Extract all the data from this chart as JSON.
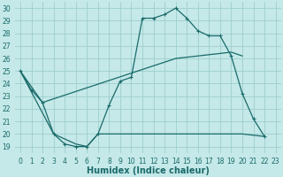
{
  "title": "",
  "xlabel": "Humidex (Indice chaleur)",
  "bg_color": "#c5e8e8",
  "grid_color": "#9ecece",
  "line_color": "#1a6b6b",
  "xlim": [
    -0.5,
    23.5
  ],
  "ylim": [
    18.5,
    30.5
  ],
  "xticks": [
    0,
    1,
    2,
    3,
    4,
    5,
    6,
    7,
    8,
    9,
    10,
    11,
    12,
    13,
    14,
    15,
    16,
    17,
    18,
    19,
    20,
    21,
    22,
    23
  ],
  "yticks": [
    19,
    20,
    21,
    22,
    23,
    24,
    25,
    26,
    27,
    28,
    29,
    30
  ],
  "curve_x": [
    0,
    1,
    2,
    3,
    4,
    5,
    6,
    7,
    8,
    9,
    10,
    11,
    12,
    13,
    14,
    15,
    16,
    17,
    18,
    19,
    20,
    21,
    22
  ],
  "curve_y": [
    25.0,
    23.5,
    22.5,
    20.0,
    19.2,
    19.0,
    19.0,
    20.0,
    22.3,
    24.2,
    24.5,
    29.2,
    29.2,
    29.5,
    30.0,
    29.2,
    28.2,
    27.8,
    27.8,
    26.2,
    23.2,
    21.2,
    19.8
  ],
  "line_upper_x": [
    0,
    2,
    14,
    19,
    20
  ],
  "line_upper_y": [
    25.0,
    22.5,
    26.0,
    26.5,
    26.2
  ],
  "line_lower_x": [
    0,
    3,
    5,
    6,
    7,
    19,
    20,
    22
  ],
  "line_lower_y": [
    25.0,
    20.0,
    19.2,
    19.0,
    20.0,
    20.0,
    20.0,
    19.8
  ],
  "title_fontsize": 6.5,
  "tick_fontsize": 5.5,
  "xlabel_fontsize": 7.0
}
